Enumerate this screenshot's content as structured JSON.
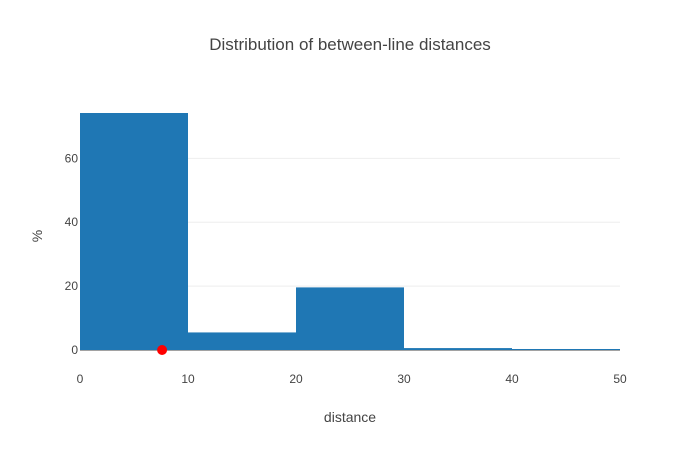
{
  "chart_data": {
    "type": "bar",
    "title": "Distribution of between-line distances",
    "xlabel": "distance",
    "ylabel": "%",
    "bins": [
      {
        "x0": 0,
        "x1": 10,
        "value": 74.2
      },
      {
        "x0": 10,
        "x1": 20,
        "value": 5.5
      },
      {
        "x0": 20,
        "x1": 30,
        "value": 19.6
      },
      {
        "x0": 30,
        "x1": 40,
        "value": 0.6
      },
      {
        "x0": 40,
        "x1": 50,
        "value": 0.1
      }
    ],
    "marker_point": {
      "x": 7.6,
      "y": 0
    },
    "xlim": [
      0,
      50
    ],
    "ylim": [
      0,
      74.2
    ],
    "x_ticks": [
      0,
      10,
      20,
      30,
      40,
      50
    ],
    "y_ticks": [
      0,
      20,
      40,
      60
    ],
    "grid": true,
    "colors": {
      "bar": "#1f77b4",
      "marker": "#ff0000",
      "grid": "#eeeeee",
      "text": "#444444"
    }
  }
}
